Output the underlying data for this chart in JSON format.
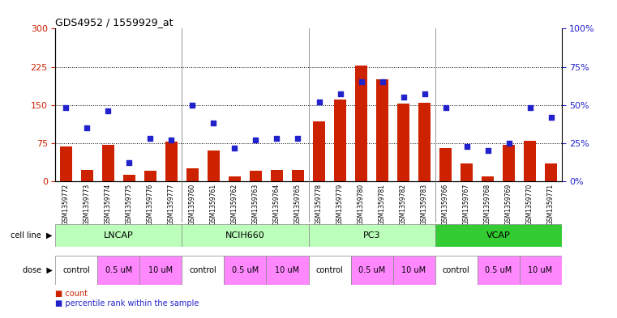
{
  "title": "GDS4952 / 1559929_at",
  "samples": [
    "GSM1359772",
    "GSM1359773",
    "GSM1359774",
    "GSM1359775",
    "GSM1359776",
    "GSM1359777",
    "GSM1359760",
    "GSM1359761",
    "GSM1359762",
    "GSM1359763",
    "GSM1359764",
    "GSM1359765",
    "GSM1359778",
    "GSM1359779",
    "GSM1359780",
    "GSM1359781",
    "GSM1359782",
    "GSM1359783",
    "GSM1359766",
    "GSM1359767",
    "GSM1359768",
    "GSM1359769",
    "GSM1359770",
    "GSM1359771"
  ],
  "counts": [
    68,
    22,
    72,
    12,
    20,
    78,
    25,
    60,
    10,
    20,
    22,
    22,
    118,
    160,
    228,
    200,
    153,
    155,
    65,
    35,
    10,
    72,
    80,
    35
  ],
  "percentiles": [
    48,
    35,
    46,
    12,
    28,
    27,
    50,
    38,
    22,
    27,
    28,
    28,
    52,
    57,
    65,
    65,
    55,
    57,
    48,
    23,
    20,
    25,
    48,
    42
  ],
  "cell_lines": [
    {
      "name": "LNCAP",
      "start": 0,
      "end": 6,
      "color": "#bbffbb"
    },
    {
      "name": "NCIH660",
      "start": 6,
      "end": 12,
      "color": "#bbffbb"
    },
    {
      "name": "PC3",
      "start": 12,
      "end": 18,
      "color": "#bbffbb"
    },
    {
      "name": "VCAP",
      "start": 18,
      "end": 24,
      "color": "#33cc33"
    }
  ],
  "dose_groups": [
    {
      "label": "control",
      "start": 0,
      "end": 2,
      "color": "#ffffff"
    },
    {
      "label": "0.5 uM",
      "start": 2,
      "end": 4,
      "color": "#ff88ff"
    },
    {
      "label": "10 uM",
      "start": 4,
      "end": 6,
      "color": "#ff88ff"
    },
    {
      "label": "control",
      "start": 6,
      "end": 8,
      "color": "#ffffff"
    },
    {
      "label": "0.5 uM",
      "start": 8,
      "end": 10,
      "color": "#ff88ff"
    },
    {
      "label": "10 uM",
      "start": 10,
      "end": 12,
      "color": "#ff88ff"
    },
    {
      "label": "control",
      "start": 12,
      "end": 14,
      "color": "#ffffff"
    },
    {
      "label": "0.5 uM",
      "start": 14,
      "end": 16,
      "color": "#ff88ff"
    },
    {
      "label": "10 uM",
      "start": 16,
      "end": 18,
      "color": "#ff88ff"
    },
    {
      "label": "control",
      "start": 18,
      "end": 20,
      "color": "#ffffff"
    },
    {
      "label": "0.5 uM",
      "start": 20,
      "end": 22,
      "color": "#ff88ff"
    },
    {
      "label": "10 uM",
      "start": 22,
      "end": 24,
      "color": "#ff88ff"
    }
  ],
  "bar_color": "#cc2200",
  "dot_color": "#2222cc",
  "ylim_left": [
    0,
    300
  ],
  "ylim_right": [
    0,
    100
  ],
  "yticks_left": [
    0,
    75,
    150,
    225,
    300
  ],
  "yticks_right": [
    0,
    25,
    50,
    75,
    100
  ],
  "ytick_labels_right": [
    "0%",
    "25%",
    "50%",
    "75%",
    "100%"
  ],
  "hlines": [
    75,
    150,
    225
  ],
  "gray_bg": "#dddddd"
}
